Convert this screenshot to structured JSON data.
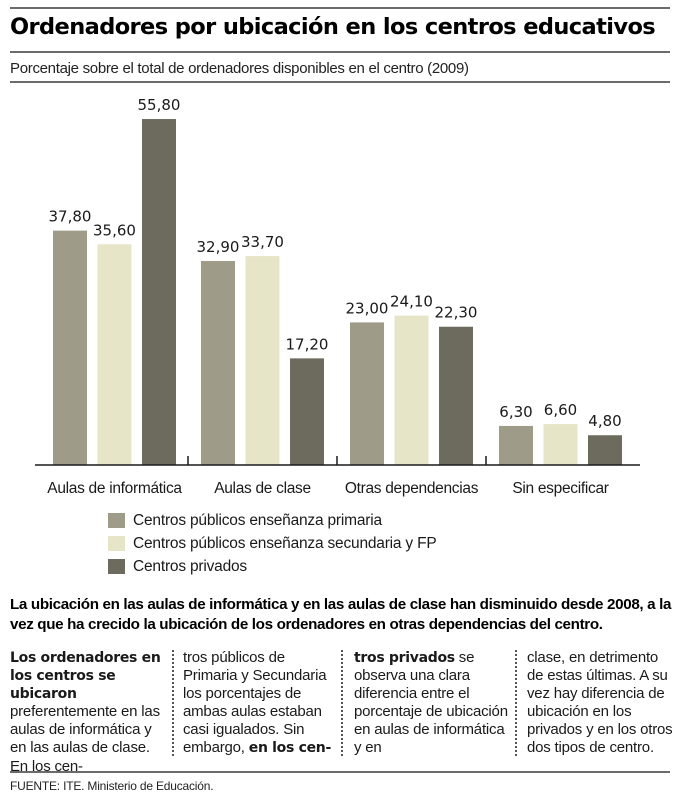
{
  "header": {
    "title": "Ordenadores por ubicación en los centros educativos",
    "subtitle": "Porcentaje sobre el total de ordenadores disponibles en el centro (2009)"
  },
  "chart_data": {
    "type": "bar",
    "title": "Ordenadores por ubicación en los centros educativos",
    "subtitle": "Porcentaje sobre el total de ordenadores disponibles en el centro (2009)",
    "xlabel": "",
    "ylabel": "",
    "ylim": [
      0,
      60
    ],
    "grid": false,
    "legend_position": "bottom",
    "categories": [
      "Aulas de informática",
      "Aulas de clase",
      "Otras dependencias",
      "Sin especificar"
    ],
    "series": [
      {
        "name": "Centros públicos enseñanza primaria",
        "color": "#9e9c88",
        "values": [
          37.8,
          32.9,
          23.0,
          6.3
        ],
        "labels": [
          "37,80",
          "32,90",
          "23,00",
          "6,30"
        ]
      },
      {
        "name": "Centros públicos enseñanza secundaria y FP",
        "color": "#e6e5c8",
        "values": [
          35.6,
          33.7,
          24.1,
          6.6
        ],
        "labels": [
          "35,60",
          "33,70",
          "24,10",
          "6,60"
        ]
      },
      {
        "name": "Centros privados",
        "color": "#6d6b5d",
        "values": [
          55.8,
          17.2,
          22.3,
          4.8
        ],
        "labels": [
          "55,80",
          "17,20",
          "22,30",
          "4,80"
        ]
      }
    ]
  },
  "article": {
    "lead": "La ubicación en las aulas de informática y en las aulas de clase han disminuido desde 2008, a la vez que ha crecido la ubicación de los ordenadores en otras dependencias del centro.",
    "columns": [
      {
        "bold_start": "Los ordenadores en los centros se ubicaron",
        "text": " preferentemente en las aulas de informática y en las aulas de clase. En los cen-",
        "bold_end": ""
      },
      {
        "bold_start": "",
        "text": "tros públicos de Primaria y Secundaria los porcentajes de ambas aulas estaban casi igualados. Sin embargo, ",
        "bold_end": "en los cen-"
      },
      {
        "bold_start": "tros privados",
        "text": " se observa una clara diferencia entre el porcentaje de ubicación en aulas de informática y en",
        "bold_end": ""
      },
      {
        "bold_start": "",
        "text": "clase, en detrimento de estas últimas. A su vez hay diferencia de ubicación en los privados y en los otros dos tipos de centro.",
        "bold_end": ""
      }
    ]
  },
  "footer": {
    "source": "FUENTE: ITE. Ministerio de Educación."
  }
}
